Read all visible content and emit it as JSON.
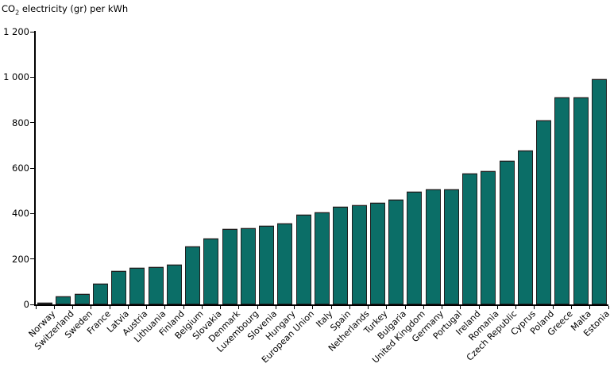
{
  "title": {
    "prefix": "CO",
    "subscript": "2",
    "suffix": " electricity (gr) per kWh"
  },
  "chart_data": {
    "type": "bar",
    "title": "CO2 electricity (gr) per kWh",
    "xlabel": "",
    "ylabel": "CO2 electricity (gr) per kWh",
    "categories": [
      "Norway",
      "Switzerland",
      "Sweden",
      "France",
      "Latvia",
      "Austria",
      "Lithuania",
      "Finland",
      "Belgium",
      "Slovakia",
      "Denmark",
      "Luxembourg",
      "Slovenia",
      "Hungary",
      "European Union",
      "Italy",
      "Spain",
      "Netherlands",
      "Turkey",
      "Bulgaria",
      "United Kingdom",
      "Germany",
      "Portugal",
      "Ireland",
      "Romania",
      "Czech Republic",
      "Cyprus",
      "Poland",
      "Greece",
      "Malta",
      "Estonia"
    ],
    "values": [
      5,
      35,
      45,
      90,
      145,
      160,
      165,
      175,
      255,
      290,
      330,
      335,
      345,
      355,
      395,
      405,
      430,
      435,
      445,
      460,
      495,
      505,
      505,
      575,
      585,
      630,
      675,
      810,
      910,
      910,
      990
    ],
    "ylim": [
      0,
      1200
    ],
    "ytick_interval": 200,
    "ytick_labels": [
      "0",
      "200",
      "400",
      "600",
      "800",
      "1 000",
      "1 200"
    ],
    "grid": false,
    "legend": "none",
    "bar_color": "#0b6e67",
    "bar_border_color": "#1f1f1f",
    "axis_color": "#000000"
  }
}
